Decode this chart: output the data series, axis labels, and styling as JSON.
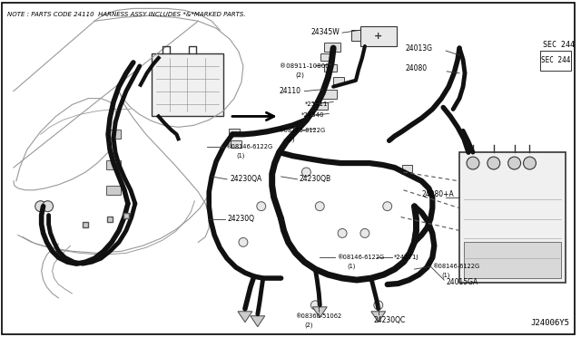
{
  "bg_color": "#ffffff",
  "border_color": "#000000",
  "fig_width": 6.4,
  "fig_height": 3.72,
  "dpi": 100,
  "title_note": "NOTE : PARTS CODE 24110  HARNESS ASSY INCLUDES *&*MARKED PARTS.",
  "diagram_id": "J24006Y5",
  "sec_label": "SEC 244",
  "wire_color": "#111111",
  "line_color": "#333333",
  "bg_line_color": "#999999"
}
